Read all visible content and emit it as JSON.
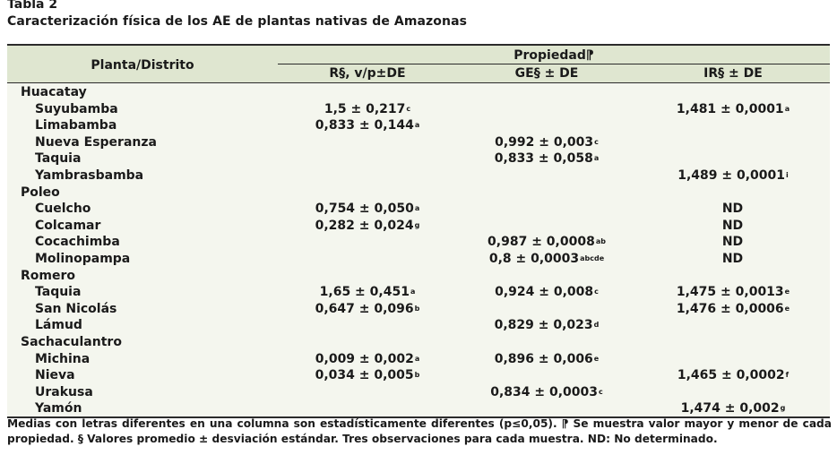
{
  "caption": "Tabla 2",
  "subtitle": "Caracterización física de los AE de plantas nativas de Amazonas",
  "header": {
    "plant_district": "Planta/Distrito",
    "property": "Propiedad⁋",
    "col_r": "R§, v/p±DE",
    "col_ge": "GE§ ± DE",
    "col_ir": "IR§ ± DE"
  },
  "rows": [
    {
      "name": "Huacatay",
      "group": true,
      "r": "",
      "r_sup": "",
      "ge": "",
      "ge_sup": "",
      "ir": "",
      "ir_sup": ""
    },
    {
      "name": "Suyubamba",
      "group": false,
      "r": "1,5 ± 0,217",
      "r_sup": "c",
      "ge": "",
      "ge_sup": "",
      "ir": "1,481 ± 0,0001",
      "ir_sup": "a"
    },
    {
      "name": "Limabamba",
      "group": false,
      "r": "0,833 ± 0,144",
      "r_sup": "a",
      "ge": "",
      "ge_sup": "",
      "ir": "",
      "ir_sup": ""
    },
    {
      "name": "Nueva Esperanza",
      "group": false,
      "r": "",
      "r_sup": "",
      "ge": "0,992 ± 0,003",
      "ge_sup": "c",
      "ir": "",
      "ir_sup": ""
    },
    {
      "name": "Taquia",
      "group": false,
      "r": "",
      "r_sup": "",
      "ge": "0,833 ± 0,058",
      "ge_sup": "a",
      "ir": "",
      "ir_sup": ""
    },
    {
      "name": "Yambrasbamba",
      "group": false,
      "r": "",
      "r_sup": "",
      "ge": "",
      "ge_sup": "",
      "ir": "1,489 ± 0,0001",
      "ir_sup": "i"
    },
    {
      "name": "Poleo",
      "group": true,
      "r": "",
      "r_sup": "",
      "ge": "",
      "ge_sup": "",
      "ir": "",
      "ir_sup": ""
    },
    {
      "name": "Cuelcho",
      "group": false,
      "r": "0,754 ± 0,050",
      "r_sup": "a",
      "ge": "",
      "ge_sup": "",
      "ir": "ND",
      "ir_sup": ""
    },
    {
      "name": "Colcamar",
      "group": false,
      "r": "0,282 ± 0,024",
      "r_sup": "g",
      "ge": "",
      "ge_sup": "",
      "ir": "ND",
      "ir_sup": ""
    },
    {
      "name": "Cocachimba",
      "group": false,
      "r": "",
      "r_sup": "",
      "ge": "0,987 ± 0,0008",
      "ge_sup": "ab",
      "ir": "ND",
      "ir_sup": ""
    },
    {
      "name": "Molinopampa",
      "group": false,
      "r": "",
      "r_sup": "",
      "ge": "0,8 ± 0,0003",
      "ge_sup": "abcde",
      "ir": "ND",
      "ir_sup": ""
    },
    {
      "name": "Romero",
      "group": true,
      "r": "",
      "r_sup": "",
      "ge": "",
      "ge_sup": "",
      "ir": "",
      "ir_sup": ""
    },
    {
      "name": "Taquia",
      "group": false,
      "r": "1,65 ± 0,451",
      "r_sup": "a",
      "ge": "0,924 ± 0,008",
      "ge_sup": "c",
      "ir": "1,475 ± 0,0013",
      "ir_sup": "e"
    },
    {
      "name": "San Nicolás",
      "group": false,
      "r": "0,647 ± 0,096",
      "r_sup": "b",
      "ge": "",
      "ge_sup": "",
      "ir": "1,476 ± 0,0006",
      "ir_sup": "e"
    },
    {
      "name": "Lámud",
      "group": false,
      "r": "",
      "r_sup": "",
      "ge": "0,829 ± 0,023",
      "ge_sup": "d",
      "ir": "",
      "ir_sup": ""
    },
    {
      "name": "Sachaculantro",
      "group": true,
      "r": "",
      "r_sup": "",
      "ge": "",
      "ge_sup": "",
      "ir": "",
      "ir_sup": ""
    },
    {
      "name": "Michina",
      "group": false,
      "r": "0,009 ± 0,002",
      "r_sup": "a",
      "ge": "0,896 ± 0,006",
      "ge_sup": "e",
      "ir": "",
      "ir_sup": ""
    },
    {
      "name": "Nieva",
      "group": false,
      "r": "0,034 ± 0,005",
      "r_sup": "b",
      "ge": "",
      "ge_sup": "",
      "ir": "1,465 ± 0,0002",
      "ir_sup": "f"
    },
    {
      "name": "Urakusa",
      "group": false,
      "r": "",
      "r_sup": "",
      "ge": "0,834 ± 0,0003",
      "ge_sup": "c",
      "ir": "",
      "ir_sup": ""
    },
    {
      "name": "Yamón",
      "group": false,
      "r": "",
      "r_sup": "",
      "ge": "",
      "ge_sup": "",
      "ir": "1,474 ± 0,002",
      "ir_sup": "g"
    }
  ],
  "footnote": "Medias con letras diferentes en una columna son estadísticamente diferentes (p≤0,05). ⁋ Se muestra valor mayor y menor de cada propiedad. § Valores promedio ± desviación estándar. Tres observaciones para cada muestra. ND: No determinado."
}
